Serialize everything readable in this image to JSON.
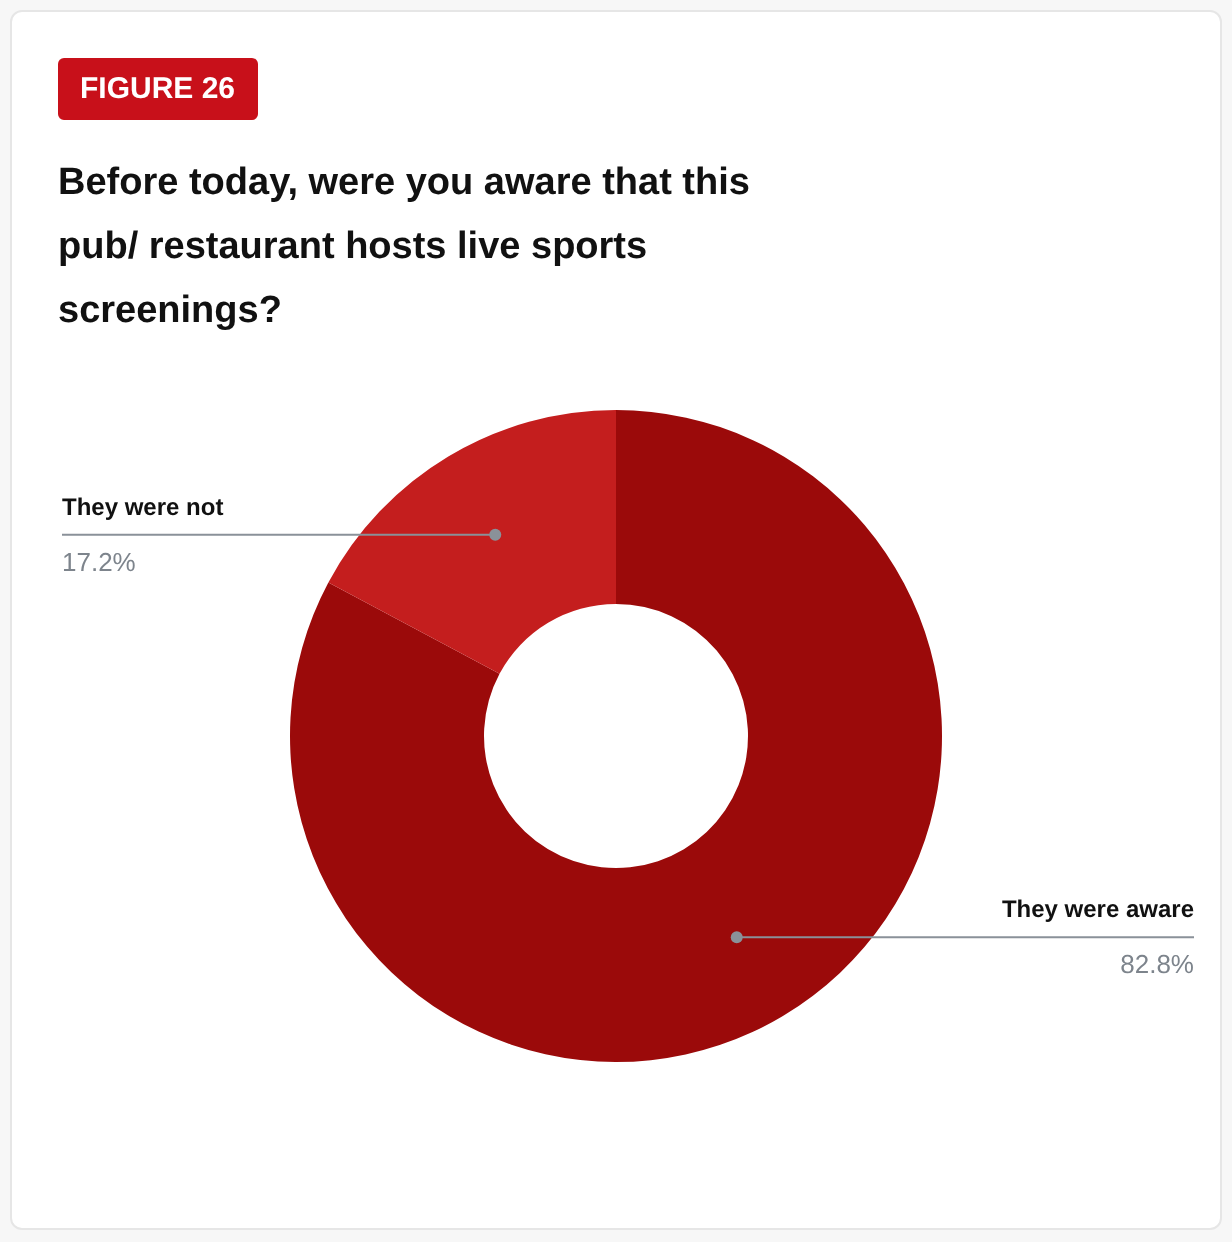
{
  "chart_data": {
    "type": "donut",
    "title": "Before today, were you aware that this pub/ restaurant hosts live sports screenings?",
    "annotations": [
      "FIGURE 26"
    ],
    "categories": [
      "They were aware",
      "They were not"
    ],
    "values": [
      82.8,
      17.2
    ],
    "colors": [
      "#9b0a0a",
      "#c41e1e"
    ],
    "value_labels": [
      "82.8%",
      "17.2%"
    ]
  }
}
